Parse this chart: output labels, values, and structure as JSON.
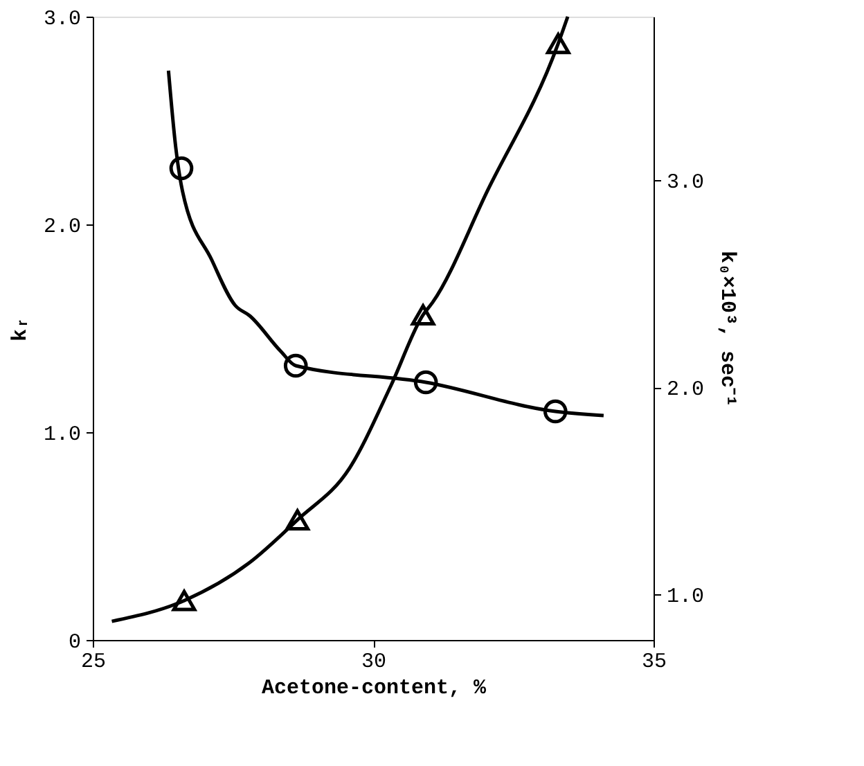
{
  "chart_data": {
    "type": "scatter",
    "xlabel": "Acetone-content, %",
    "ylabel": "kᵣ",
    "y2label": "k₀×10³, sec⁻¹",
    "xlim": [
      25,
      35
    ],
    "xticks": [
      25,
      30,
      35
    ],
    "ylim": [
      0,
      3.0
    ],
    "yticks": [
      {
        "value": 0,
        "label": "0"
      },
      {
        "value": 1,
        "label": "1.0"
      },
      {
        "value": 2,
        "label": "2.0"
      },
      {
        "value": 3,
        "label": "3.0"
      }
    ],
    "y2lim": [
      0.78,
      3.79
    ],
    "y2ticks": [
      {
        "value": 1,
        "label": "1.0"
      },
      {
        "value": 2,
        "label": "2.0"
      },
      {
        "value": 3,
        "label": "3.0"
      }
    ],
    "grid": false,
    "series": [
      {
        "type": "scatter",
        "marker": "circle",
        "color": "#000000",
        "x": [
          26.58,
          28.62,
          30.94,
          33.25
        ],
        "values": [
          2.27,
          1.32,
          1.24,
          1.1
        ]
      },
      {
        "type": "line",
        "marker": "none",
        "line_style": "solid",
        "color": "#000000",
        "x": [
          26.35,
          26.48,
          26.6,
          27.12,
          27.54,
          27.8,
          28.35,
          28.62,
          30.94,
          33.25,
          34.11
        ],
        "values": [
          2.74,
          2.37,
          2.16,
          1.83,
          1.61,
          1.56,
          1.39,
          1.32,
          1.24,
          1.1,
          1.08
        ]
      },
      {
        "type": "scatter",
        "marker": "triangle",
        "axis": "y2",
        "color": "#000000",
        "x": [
          26.63,
          28.65,
          30.89,
          33.3
        ],
        "values": [
          0.97,
          1.36,
          2.35,
          3.66
        ]
      },
      {
        "type": "line",
        "marker": "none",
        "line_style": "solid",
        "axis": "y2",
        "color": "#000000",
        "x": [
          25.34,
          26.63,
          27.78,
          28.65,
          29.58,
          30.32,
          30.89,
          31.06,
          32.04,
          33.3,
          33.47
        ],
        "values": [
          0.87,
          0.97,
          1.15,
          1.36,
          1.61,
          2.01,
          2.35,
          2.41,
          2.95,
          3.66,
          3.79
        ]
      }
    ]
  }
}
